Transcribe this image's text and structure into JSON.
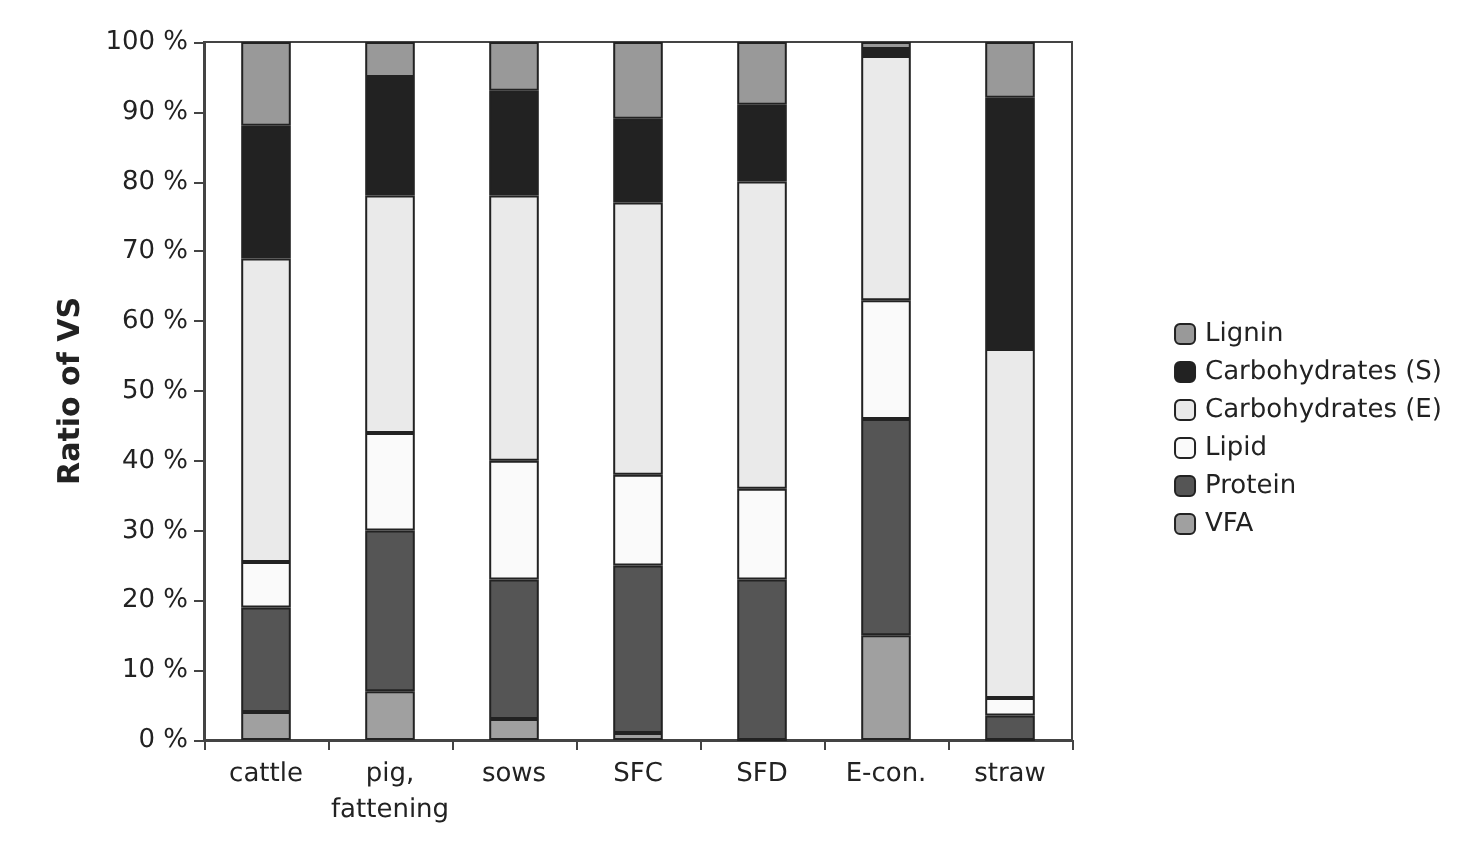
{
  "chart_data": {
    "type": "bar",
    "stacked": true,
    "ylabel": "Ratio of VS",
    "legend": "right",
    "grid": false,
    "categories": [
      "cattle",
      "pig,\nfattening",
      "sows",
      "SFC",
      "SFD",
      "E-con.",
      "straw"
    ],
    "ylim": [
      0,
      100
    ],
    "yticks": [
      {
        "value": 0,
        "label": "0 %"
      },
      {
        "value": 10,
        "label": "10 %"
      },
      {
        "value": 20,
        "label": "20 %"
      },
      {
        "value": 30,
        "label": "30 %"
      },
      {
        "value": 40,
        "label": "40 %"
      },
      {
        "value": 50,
        "label": "50 %"
      },
      {
        "value": 60,
        "label": "60 %"
      },
      {
        "value": 70,
        "label": "70 %"
      },
      {
        "value": 80,
        "label": "80 %"
      },
      {
        "value": 90,
        "label": "90 %"
      },
      {
        "value": 100,
        "label": "100 %"
      }
    ],
    "series": [
      {
        "name": "VFA",
        "color": "#a0a0a0",
        "values": [
          4,
          7,
          3,
          1,
          0,
          15,
          0
        ]
      },
      {
        "name": "Protein",
        "color": "#555555",
        "values": [
          15,
          23,
          20,
          24,
          23,
          31,
          3.5
        ]
      },
      {
        "name": "Lipid",
        "color": "#fafafa",
        "values": [
          6.5,
          14,
          17,
          13,
          13,
          17,
          2.5
        ]
      },
      {
        "name": "Carbohydrates (E)",
        "color": "#eaeaea",
        "values": [
          43.5,
          34,
          38,
          39,
          44,
          35,
          50
        ]
      },
      {
        "name": "Carbohydrates (S)",
        "color": "#222222",
        "values": [
          19,
          17,
          15,
          12,
          11,
          1,
          36
        ]
      },
      {
        "name": "Lignin",
        "color": "#999999",
        "values": [
          12,
          5,
          7,
          11,
          9,
          1,
          8
        ]
      }
    ]
  }
}
